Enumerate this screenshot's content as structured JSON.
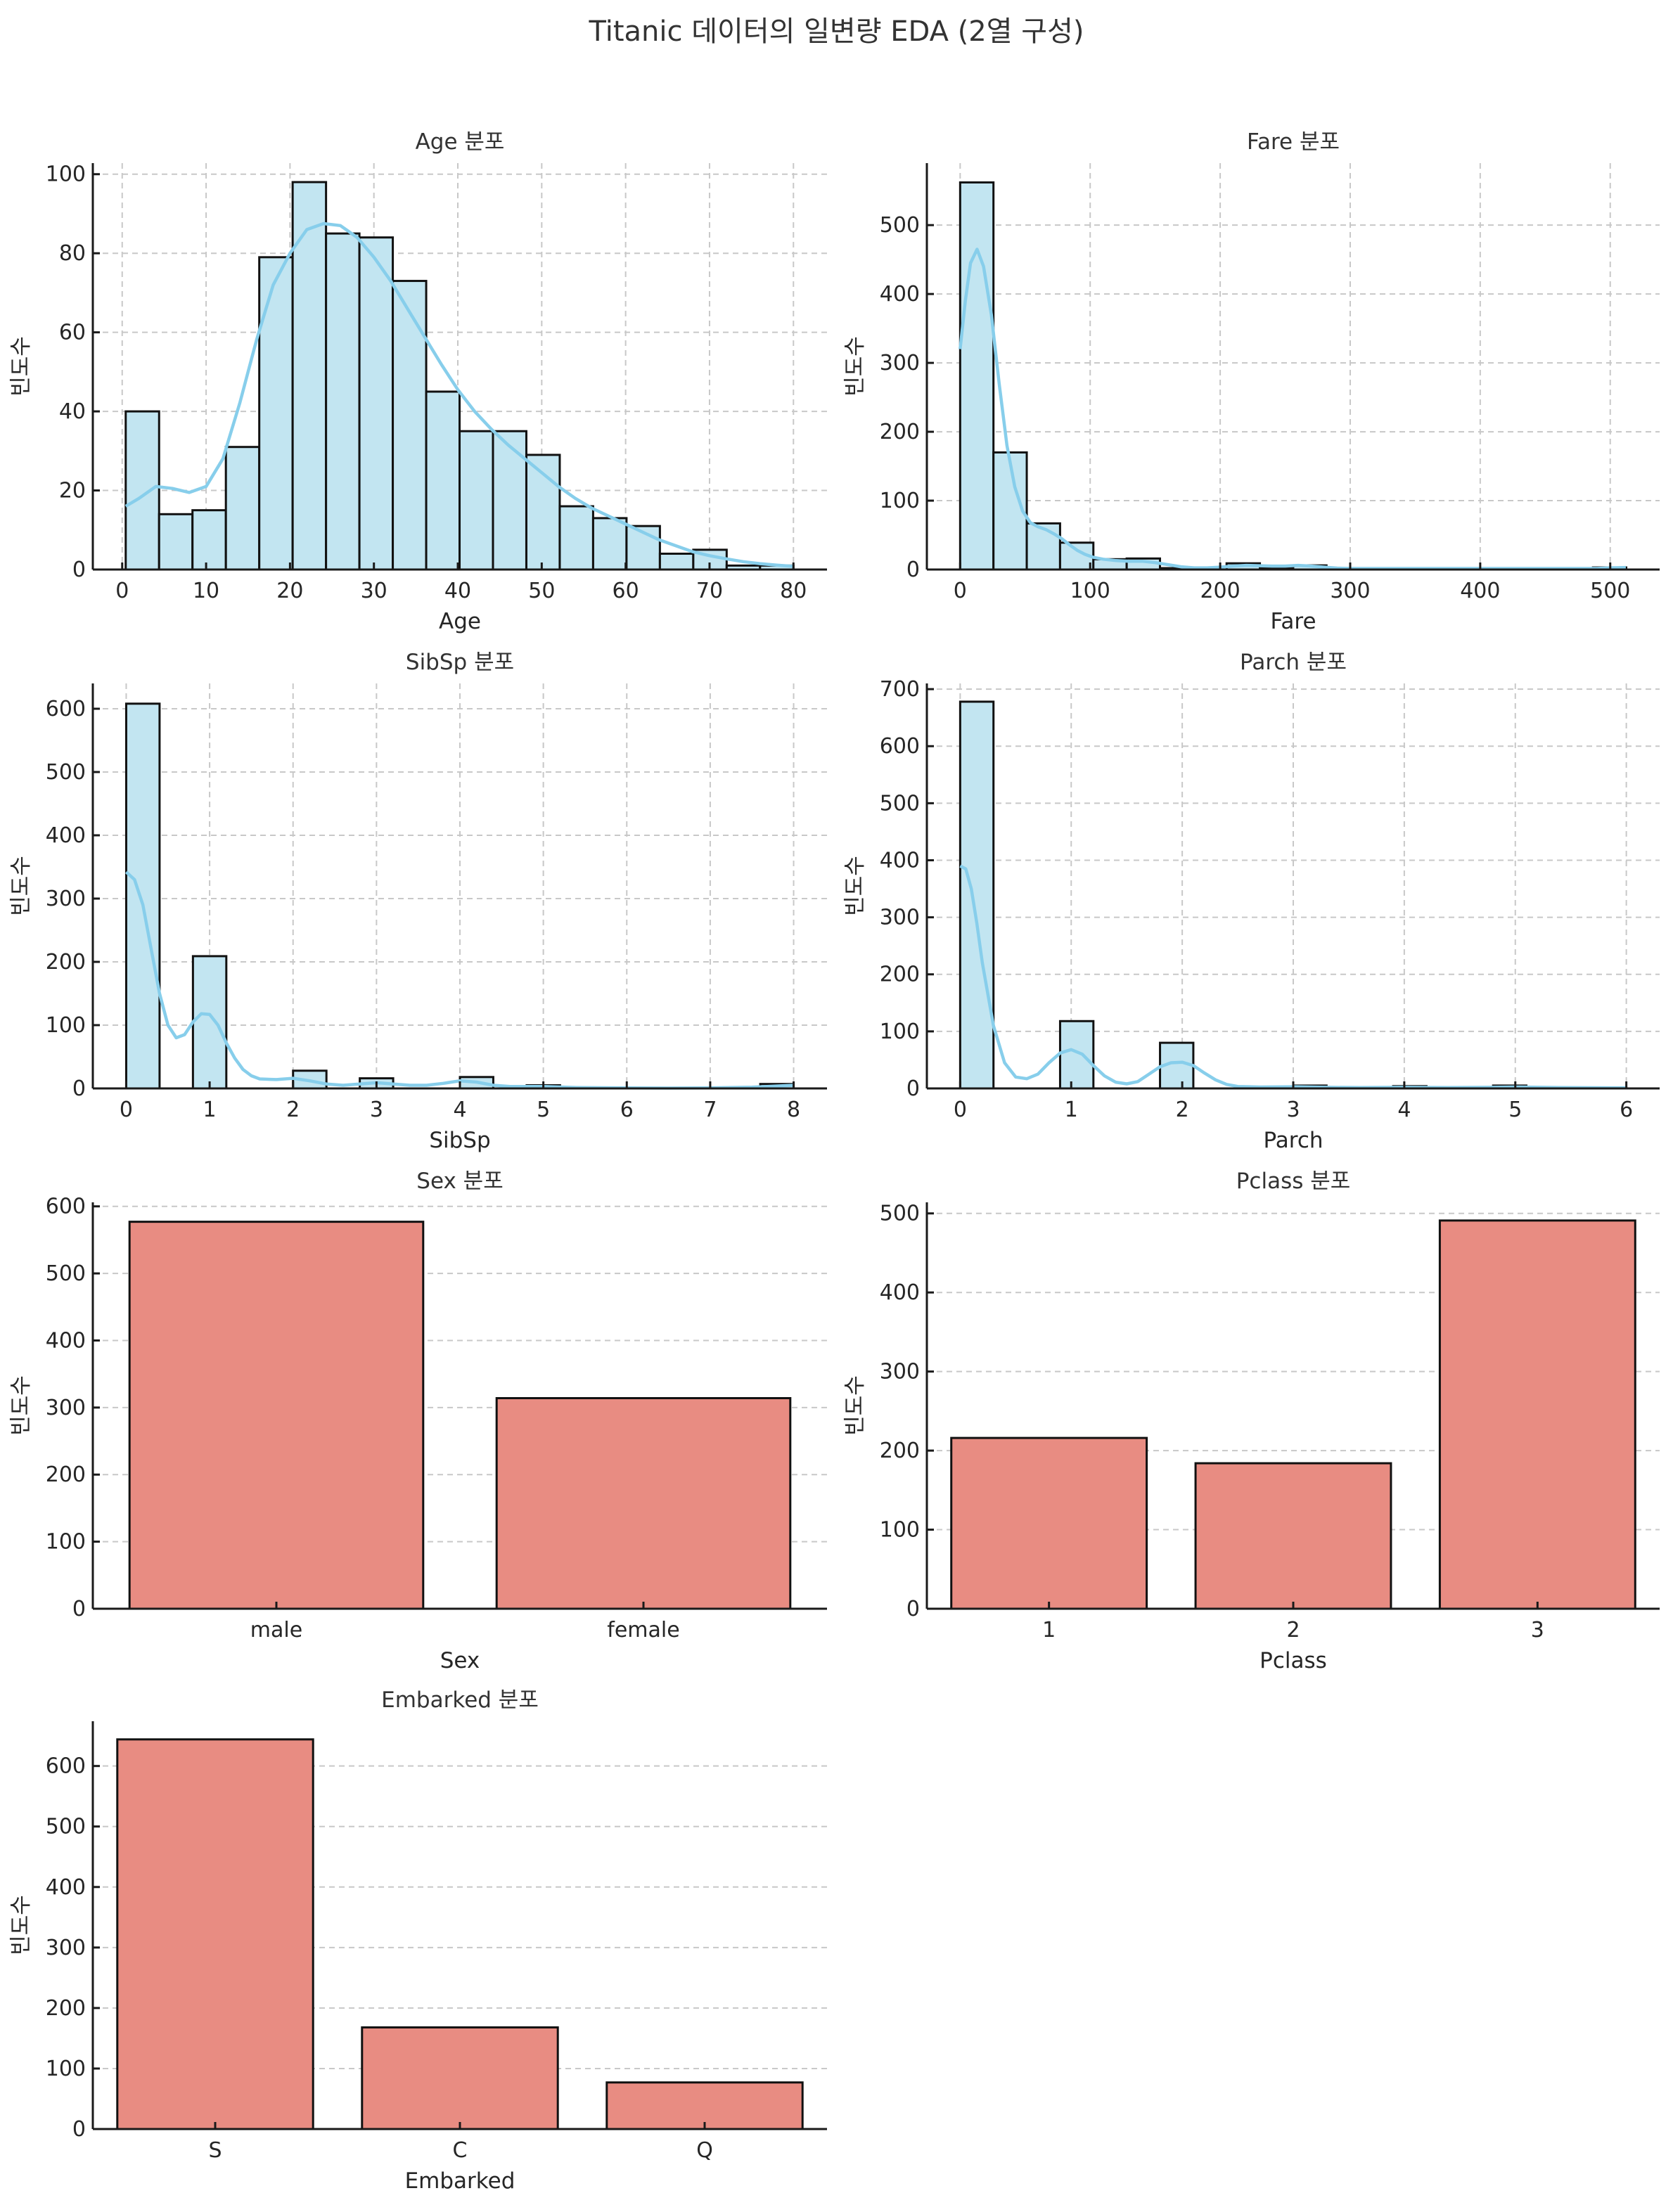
{
  "suptitle": "Titanic 데이터의 일변량 EDA (2열 구성)",
  "colors": {
    "hist_fill": "#c2e5f1",
    "kde_line": "#87ceeb",
    "bar_fill": "#e88c82",
    "edge": "#111111",
    "grid": "#c8c8c8"
  },
  "chart_data": [
    {
      "id": "age",
      "type": "bar",
      "subtype": "histogram",
      "title": "Age 분포",
      "xlabel": "Age",
      "ylabel": "빈도수",
      "bin_range": [
        0.42,
        80
      ],
      "values": [
        40,
        14,
        15,
        31,
        79,
        98,
        85,
        84,
        73,
        45,
        35,
        35,
        29,
        16,
        13,
        11,
        4,
        5,
        1,
        1
      ],
      "kde": [
        [
          0.42,
          16
        ],
        [
          2,
          18
        ],
        [
          4,
          21
        ],
        [
          6,
          20.5
        ],
        [
          8,
          19.5
        ],
        [
          10,
          21
        ],
        [
          12,
          28
        ],
        [
          14,
          42
        ],
        [
          16,
          58
        ],
        [
          18,
          72
        ],
        [
          20,
          80
        ],
        [
          22,
          86
        ],
        [
          24,
          87.5
        ],
        [
          26,
          87
        ],
        [
          28,
          84
        ],
        [
          30,
          79
        ],
        [
          32,
          73
        ],
        [
          34,
          66
        ],
        [
          36,
          59
        ],
        [
          38,
          52
        ],
        [
          40,
          45.5
        ],
        [
          42,
          40
        ],
        [
          44,
          35.5
        ],
        [
          46,
          31.5
        ],
        [
          48,
          28
        ],
        [
          50,
          24.5
        ],
        [
          52,
          21
        ],
        [
          54,
          18
        ],
        [
          56,
          15.5
        ],
        [
          58,
          13.5
        ],
        [
          60,
          11.5
        ],
        [
          62,
          9.5
        ],
        [
          64,
          7.5
        ],
        [
          66,
          6
        ],
        [
          68,
          4.5
        ],
        [
          70,
          3.5
        ],
        [
          72,
          2.7
        ],
        [
          74,
          2
        ],
        [
          76,
          1.5
        ],
        [
          78,
          1.1
        ],
        [
          80,
          0.8
        ]
      ],
      "xticks": [
        0,
        10,
        20,
        30,
        40,
        50,
        60,
        70,
        80
      ],
      "yticks": [
        0,
        20,
        40,
        60,
        80,
        100
      ],
      "xlim": [
        -3.5,
        84
      ],
      "ylim": [
        0,
        102.8
      ],
      "grid": "both"
    },
    {
      "id": "fare",
      "type": "bar",
      "subtype": "histogram",
      "title": "Fare 분포",
      "xlabel": "Fare",
      "ylabel": "빈도수",
      "bin_range": [
        0,
        512.33
      ],
      "values": [
        562,
        170,
        67,
        39,
        15,
        16,
        2,
        0,
        9,
        2,
        6,
        0,
        0,
        0,
        0,
        0,
        0,
        0,
        0,
        3
      ],
      "kde": [
        [
          0,
          320
        ],
        [
          4,
          390
        ],
        [
          8,
          445
        ],
        [
          13,
          465
        ],
        [
          18,
          440
        ],
        [
          24,
          370
        ],
        [
          30,
          270
        ],
        [
          36,
          180
        ],
        [
          42,
          120
        ],
        [
          48,
          85
        ],
        [
          54,
          68
        ],
        [
          60,
          62
        ],
        [
          66,
          58
        ],
        [
          72,
          52
        ],
        [
          78,
          45
        ],
        [
          84,
          36
        ],
        [
          90,
          28
        ],
        [
          96,
          22
        ],
        [
          102,
          18
        ],
        [
          110,
          15
        ],
        [
          120,
          13
        ],
        [
          130,
          12
        ],
        [
          140,
          12
        ],
        [
          150,
          10
        ],
        [
          160,
          7
        ],
        [
          170,
          4
        ],
        [
          180,
          2.5
        ],
        [
          190,
          2.5
        ],
        [
          200,
          3.5
        ],
        [
          210,
          5
        ],
        [
          220,
          6
        ],
        [
          230,
          5.5
        ],
        [
          240,
          5
        ],
        [
          250,
          5
        ],
        [
          260,
          6
        ],
        [
          270,
          5
        ],
        [
          280,
          3.5
        ],
        [
          290,
          2
        ],
        [
          300,
          1.5
        ],
        [
          350,
          1.5
        ],
        [
          400,
          1.5
        ],
        [
          450,
          1.5
        ],
        [
          490,
          1.5
        ],
        [
          500,
          2.5
        ],
        [
          512,
          3
        ]
      ],
      "xticks": [
        0,
        100,
        200,
        300,
        400,
        500
      ],
      "yticks": [
        0,
        100,
        200,
        300,
        400,
        500
      ],
      "xlim": [
        -25.6,
        538
      ],
      "ylim": [
        0,
        590
      ],
      "grid": "both"
    },
    {
      "id": "sibsp",
      "type": "bar",
      "subtype": "histogram",
      "title": "SibSp 분포",
      "xlabel": "SibSp",
      "ylabel": "빈도수",
      "bin_range": [
        0,
        8
      ],
      "values": [
        608,
        0,
        209,
        0,
        0,
        28,
        0,
        16,
        0,
        0,
        18,
        0,
        5,
        0,
        0,
        0,
        0,
        0,
        0,
        7
      ],
      "kde": [
        [
          0,
          342
        ],
        [
          0.1,
          330
        ],
        [
          0.2,
          290
        ],
        [
          0.3,
          220
        ],
        [
          0.4,
          150
        ],
        [
          0.5,
          100
        ],
        [
          0.6,
          80
        ],
        [
          0.7,
          85
        ],
        [
          0.8,
          105
        ],
        [
          0.9,
          118
        ],
        [
          1.0,
          117
        ],
        [
          1.1,
          100
        ],
        [
          1.2,
          72
        ],
        [
          1.3,
          48
        ],
        [
          1.4,
          30
        ],
        [
          1.5,
          20
        ],
        [
          1.6,
          15
        ],
        [
          1.8,
          14
        ],
        [
          2.0,
          16
        ],
        [
          2.2,
          12
        ],
        [
          2.4,
          7
        ],
        [
          2.6,
          5
        ],
        [
          2.8,
          7
        ],
        [
          3.0,
          9
        ],
        [
          3.2,
          7
        ],
        [
          3.4,
          5
        ],
        [
          3.6,
          5
        ],
        [
          3.8,
          8
        ],
        [
          4.0,
          12
        ],
        [
          4.2,
          10
        ],
        [
          4.4,
          5
        ],
        [
          4.6,
          3
        ],
        [
          4.8,
          3
        ],
        [
          5.0,
          3
        ],
        [
          5.4,
          1.5
        ],
        [
          6,
          0.8
        ],
        [
          6.5,
          0.6
        ],
        [
          7,
          0.8
        ],
        [
          7.5,
          2
        ],
        [
          8,
          5
        ]
      ],
      "xticks": [
        0,
        1,
        2,
        3,
        4,
        5,
        6,
        7,
        8
      ],
      "yticks": [
        0,
        100,
        200,
        300,
        400,
        500,
        600
      ],
      "xlim": [
        -0.4,
        8.4
      ],
      "ylim": [
        0,
        640
      ],
      "grid": "both"
    },
    {
      "id": "parch",
      "type": "bar",
      "subtype": "histogram",
      "title": "Parch 분포",
      "xlabel": "Parch",
      "ylabel": "빈도수",
      "bin_range": [
        0,
        6
      ],
      "values": [
        678,
        0,
        0,
        118,
        0,
        0,
        80,
        0,
        0,
        0,
        5,
        0,
        0,
        4,
        0,
        0,
        5,
        0,
        0,
        1
      ],
      "kde": [
        [
          0,
          390
        ],
        [
          0.05,
          385
        ],
        [
          0.1,
          350
        ],
        [
          0.15,
          290
        ],
        [
          0.2,
          220
        ],
        [
          0.3,
          110
        ],
        [
          0.4,
          45
        ],
        [
          0.5,
          20
        ],
        [
          0.6,
          17
        ],
        [
          0.7,
          25
        ],
        [
          0.8,
          45
        ],
        [
          0.9,
          62
        ],
        [
          1.0,
          68
        ],
        [
          1.1,
          60
        ],
        [
          1.2,
          40
        ],
        [
          1.3,
          22
        ],
        [
          1.4,
          11
        ],
        [
          1.5,
          8
        ],
        [
          1.6,
          12
        ],
        [
          1.7,
          25
        ],
        [
          1.8,
          38
        ],
        [
          1.9,
          45
        ],
        [
          2.0,
          46
        ],
        [
          2.1,
          40
        ],
        [
          2.2,
          27
        ],
        [
          2.3,
          15
        ],
        [
          2.4,
          7
        ],
        [
          2.5,
          3.5
        ],
        [
          2.7,
          2.5
        ],
        [
          3.0,
          3
        ],
        [
          3.3,
          2
        ],
        [
          3.6,
          1.5
        ],
        [
          4.0,
          2
        ],
        [
          4.4,
          1.5
        ],
        [
          4.8,
          2
        ],
        [
          5.0,
          2.5
        ],
        [
          5.4,
          1.5
        ],
        [
          6.0,
          1
        ]
      ],
      "xticks": [
        0,
        1,
        2,
        3,
        4,
        5,
        6
      ],
      "yticks": [
        0,
        100,
        200,
        300,
        400,
        500,
        600,
        700
      ],
      "xlim": [
        -0.3,
        6.3
      ],
      "ylim": [
        0,
        710
      ],
      "grid": "both"
    },
    {
      "id": "sex",
      "type": "bar",
      "title": "Sex 분포",
      "xlabel": "Sex",
      "ylabel": "빈도수",
      "categories": [
        "male",
        "female"
      ],
      "values": [
        577,
        314
      ],
      "yticks": [
        0,
        100,
        200,
        300,
        400,
        500,
        600
      ],
      "ylim": [
        0,
        606
      ],
      "grid": "y"
    },
    {
      "id": "pclass",
      "type": "bar",
      "title": "Pclass 분포",
      "xlabel": "Pclass",
      "ylabel": "빈도수",
      "categories": [
        "1",
        "2",
        "3"
      ],
      "values": [
        216,
        184,
        491
      ],
      "yticks": [
        0,
        100,
        200,
        300,
        400,
        500
      ],
      "ylim": [
        0,
        514
      ],
      "grid": "y"
    },
    {
      "id": "embarked",
      "type": "bar",
      "title": "Embarked 분포",
      "xlabel": "Embarked",
      "ylabel": "빈도수",
      "categories": [
        "S",
        "C",
        "Q"
      ],
      "values": [
        644,
        168,
        77
      ],
      "yticks": [
        0,
        100,
        200,
        300,
        400,
        500,
        600
      ],
      "ylim": [
        0,
        674
      ],
      "grid": "y"
    }
  ]
}
